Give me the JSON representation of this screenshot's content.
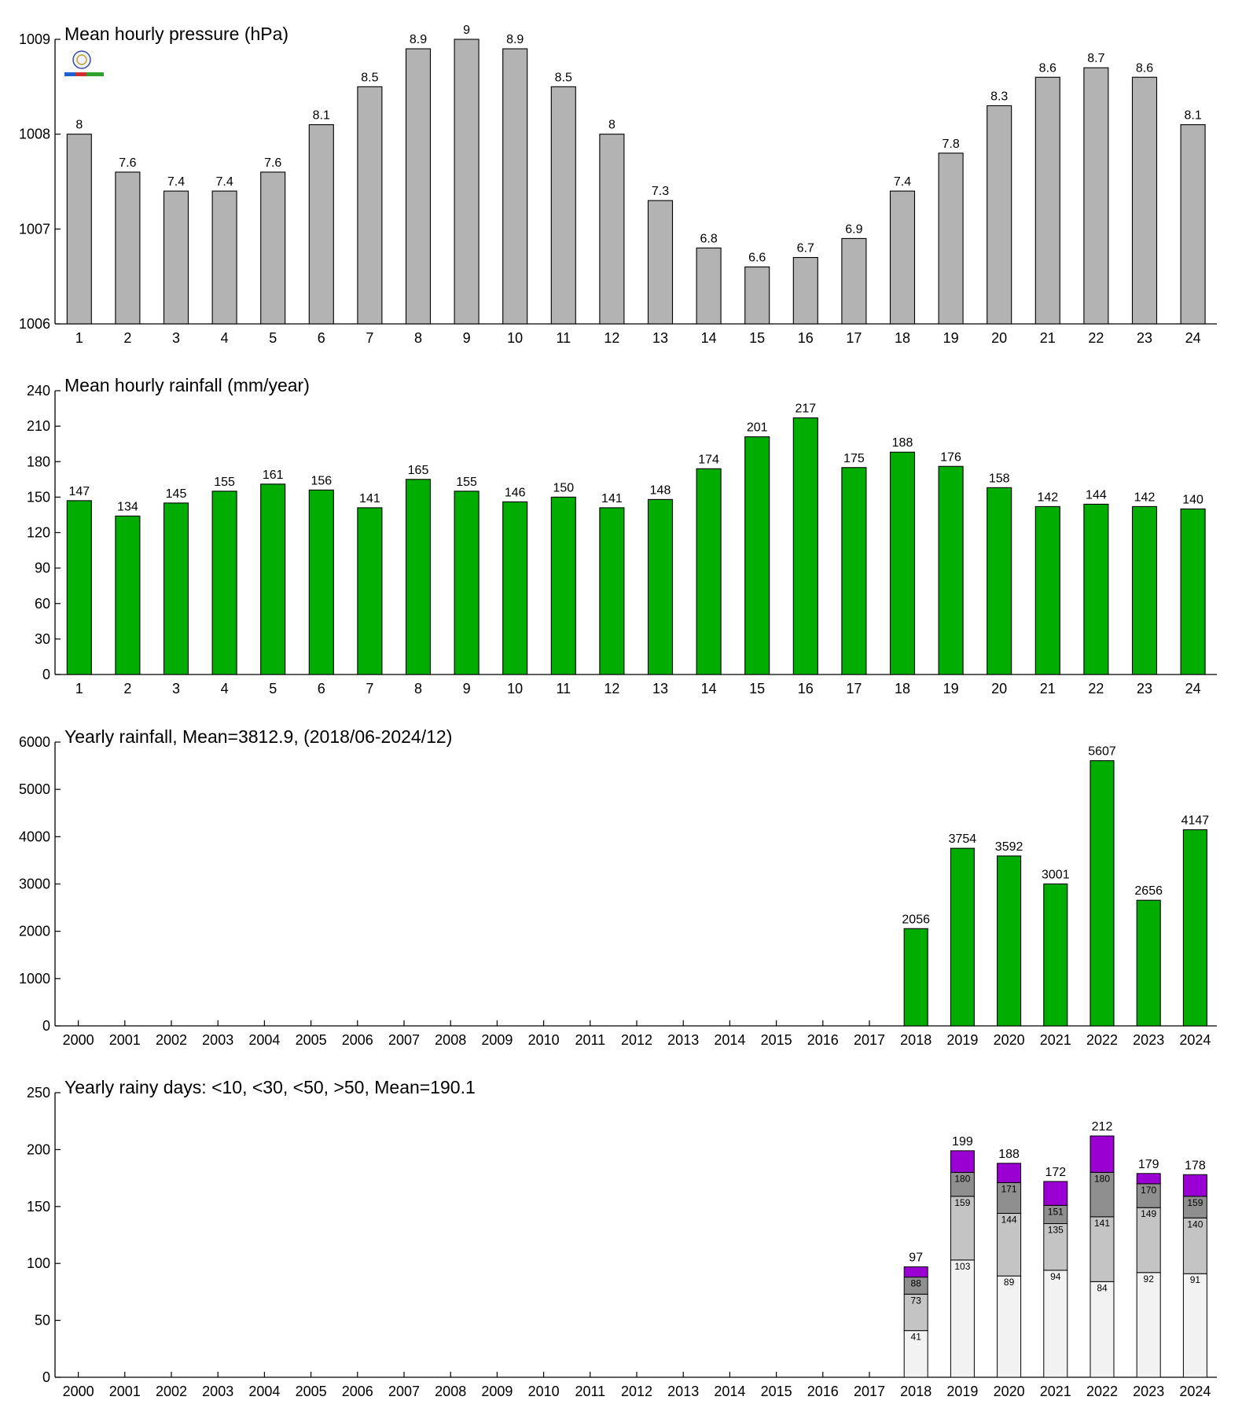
{
  "colors": {
    "pressure_bar": "#b3b3b3",
    "rain_bar": "#00ad00",
    "days_lt10": "#f2f2f2",
    "days_lt30": "#c4c4c4",
    "days_lt50": "#8f8f8f",
    "days_gt50": "#9b00d3",
    "axis": "#000000"
  },
  "logo": {
    "icon": "lab-logo-icon"
  },
  "chart_data": [
    {
      "type": "bar",
      "title": "Mean hourly pressure (hPa)",
      "categories": [
        "1",
        "2",
        "3",
        "4",
        "5",
        "6",
        "7",
        "8",
        "9",
        "10",
        "11",
        "12",
        "13",
        "14",
        "15",
        "16",
        "17",
        "18",
        "19",
        "20",
        "21",
        "22",
        "23",
        "24"
      ],
      "values": [
        1008.0,
        1007.6,
        1007.4,
        1007.4,
        1007.6,
        1008.1,
        1008.5,
        1008.9,
        1009.0,
        1008.9,
        1008.5,
        1008.0,
        1007.3,
        1006.8,
        1006.6,
        1006.7,
        1006.9,
        1007.4,
        1007.8,
        1008.3,
        1008.6,
        1008.7,
        1008.6,
        1008.1
      ],
      "data_labels": [
        "8",
        "7.6",
        "7.4",
        "7.4",
        "7.6",
        "8.1",
        "8.5",
        "8.9",
        "9",
        "8.9",
        "8.5",
        "8",
        "7.3",
        "6.8",
        "6.6",
        "6.7",
        "6.9",
        "7.4",
        "7.8",
        "8.3",
        "8.6",
        "8.7",
        "8.6",
        "8.1"
      ],
      "ylim": [
        1006,
        1009
      ],
      "yticks": [
        "1006",
        "1007",
        "1008",
        "1009"
      ],
      "grid": false
    },
    {
      "type": "bar",
      "title": "Mean hourly rainfall (mm/year)",
      "categories": [
        "1",
        "2",
        "3",
        "4",
        "5",
        "6",
        "7",
        "8",
        "9",
        "10",
        "11",
        "12",
        "13",
        "14",
        "15",
        "16",
        "17",
        "18",
        "19",
        "20",
        "21",
        "22",
        "23",
        "24"
      ],
      "values": [
        147,
        134,
        145,
        155,
        161,
        156,
        141,
        165,
        155,
        146,
        150,
        141,
        148,
        174,
        201,
        217,
        175,
        188,
        176,
        158,
        142,
        144,
        142,
        140
      ],
      "data_labels": [
        "147",
        "134",
        "145",
        "155",
        "161",
        "156",
        "141",
        "165",
        "155",
        "146",
        "150",
        "141",
        "148",
        "174",
        "201",
        "217",
        "175",
        "188",
        "176",
        "158",
        "142",
        "144",
        "142",
        "140"
      ],
      "ylim": [
        0,
        240
      ],
      "yticks": [
        "0",
        "30",
        "60",
        "90",
        "120",
        "150",
        "180",
        "210",
        "240"
      ],
      "grid": false
    },
    {
      "type": "bar",
      "title": "Yearly rainfall, Mean=3812.9, (2018/06-2024/12)",
      "categories": [
        "2000",
        "2001",
        "2002",
        "2003",
        "2004",
        "2005",
        "2006",
        "2007",
        "2008",
        "2009",
        "2010",
        "2011",
        "2012",
        "2013",
        "2014",
        "2015",
        "2016",
        "2017",
        "2018",
        "2019",
        "2020",
        "2021",
        "2022",
        "2023",
        "2024"
      ],
      "values": [
        null,
        null,
        null,
        null,
        null,
        null,
        null,
        null,
        null,
        null,
        null,
        null,
        null,
        null,
        null,
        null,
        null,
        null,
        2056,
        3754,
        3592,
        3001,
        5607,
        2656,
        4147
      ],
      "data_labels": [
        "",
        "",
        "",
        "",
        "",
        "",
        "",
        "",
        "",
        "",
        "",
        "",
        "",
        "",
        "",
        "",
        "",
        "",
        "2056",
        "3754",
        "3592",
        "3001",
        "5607",
        "2656",
        "4147"
      ],
      "ylim": [
        0,
        6000
      ],
      "yticks": [
        "0",
        "1000",
        "2000",
        "3000",
        "4000",
        "5000",
        "6000"
      ],
      "grid": false
    },
    {
      "type": "bar",
      "stacked": true,
      "title": "Yearly rainy days: <10, <30, <50, >50, Mean=190.1",
      "categories": [
        "2000",
        "2001",
        "2002",
        "2003",
        "2004",
        "2005",
        "2006",
        "2007",
        "2008",
        "2009",
        "2010",
        "2011",
        "2012",
        "2013",
        "2014",
        "2015",
        "2016",
        "2017",
        "2018",
        "2019",
        "2020",
        "2021",
        "2022",
        "2023",
        "2024"
      ],
      "cumulative": {
        "lt10": [
          null,
          null,
          null,
          null,
          null,
          null,
          null,
          null,
          null,
          null,
          null,
          null,
          null,
          null,
          null,
          null,
          null,
          null,
          41,
          103,
          89,
          94,
          84,
          92,
          91
        ],
        "lt30": [
          null,
          null,
          null,
          null,
          null,
          null,
          null,
          null,
          null,
          null,
          null,
          null,
          null,
          null,
          null,
          null,
          null,
          null,
          73,
          159,
          144,
          135,
          141,
          149,
          140
        ],
        "lt50": [
          null,
          null,
          null,
          null,
          null,
          null,
          null,
          null,
          null,
          null,
          null,
          null,
          null,
          null,
          null,
          null,
          null,
          null,
          88,
          180,
          171,
          151,
          180,
          170,
          159
        ],
        "total": [
          null,
          null,
          null,
          null,
          null,
          null,
          null,
          null,
          null,
          null,
          null,
          null,
          null,
          null,
          null,
          null,
          null,
          null,
          97,
          199,
          188,
          172,
          212,
          179,
          178
        ]
      },
      "ylim": [
        0,
        250
      ],
      "yticks": [
        "0",
        "50",
        "100",
        "150",
        "200",
        "250"
      ],
      "grid": false
    }
  ]
}
